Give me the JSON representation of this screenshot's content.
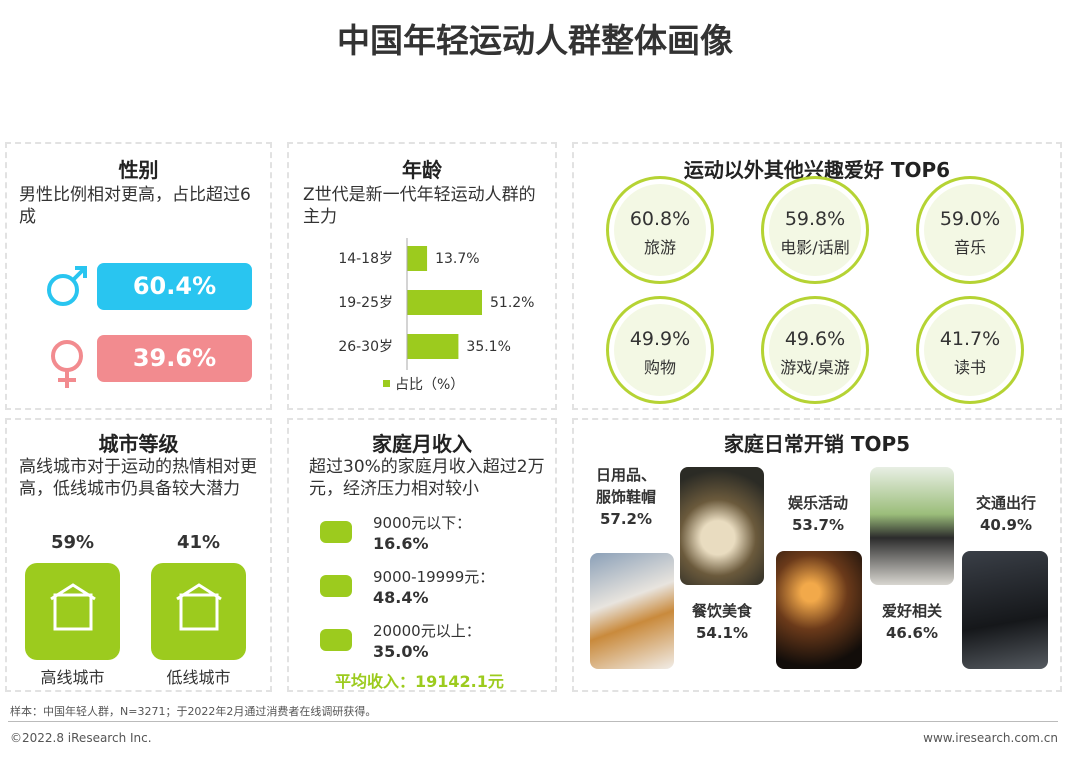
{
  "title": "中国年轻运动人群整体画像",
  "gender": {
    "title": "性别",
    "desc": "男性比例相对更高，占比超过6成",
    "male": "60.4%",
    "female": "39.6%"
  },
  "age": {
    "title": "年龄",
    "desc": "Z世代是新一代年轻运动人群的主力",
    "color": "#9ccb1e",
    "rows": [
      {
        "label": "14-18岁",
        "value": 13.7,
        "value_label": "13.7%"
      },
      {
        "label": "19-25岁",
        "value": 51.2,
        "value_label": "51.2%"
      },
      {
        "label": "26-30岁",
        "value": 35.1,
        "value_label": "35.1%"
      }
    ],
    "legend": "占比（%）"
  },
  "interests": {
    "title": "运动以外其他兴趣爱好 TOP6",
    "items": [
      {
        "value": "60.8%",
        "label": "旅游"
      },
      {
        "value": "59.8%",
        "label": "电影/话剧"
      },
      {
        "value": "59.0%",
        "label": "音乐"
      },
      {
        "value": "49.9%",
        "label": "购物"
      },
      {
        "value": "49.6%",
        "label": "游戏/桌游"
      },
      {
        "value": "41.7%",
        "label": "读书"
      }
    ]
  },
  "city": {
    "title": "城市等级",
    "desc": "高线城市对于运动的热情相对更高，低线城市仍具备较大潜力",
    "items": [
      {
        "value": "59%",
        "label": "高线城市"
      },
      {
        "value": "41%",
        "label": "低线城市"
      }
    ]
  },
  "income": {
    "title": "家庭月收入",
    "desc": "超过30%的家庭月收入超过2万元，经济压力相对较小",
    "items": [
      {
        "label": "9000元以下：",
        "value": "16.6%"
      },
      {
        "label": "9000-19999元：",
        "value": "48.4%"
      },
      {
        "label": "20000元以上：",
        "value": "35.0%"
      }
    ],
    "average": "平均收入：19142.1元"
  },
  "spending": {
    "title": "家庭日常开销 TOP5",
    "items": [
      {
        "label": "日用品、服饰鞋帽",
        "value": "57.2%"
      },
      {
        "label": "餐饮美食",
        "value": "54.1%"
      },
      {
        "label": "娱乐活动",
        "value": "53.7%"
      },
      {
        "label": "爱好相关",
        "value": "46.6%"
      },
      {
        "label": "交通出行",
        "value": "40.9%"
      }
    ]
  },
  "footer": {
    "note": "样本：中国年轻人群，N=3271；于2022年2月通过消费者在线调研获得。",
    "copyright": "©2022.8 iResearch Inc.",
    "url": "www.iresearch.com.cn"
  }
}
